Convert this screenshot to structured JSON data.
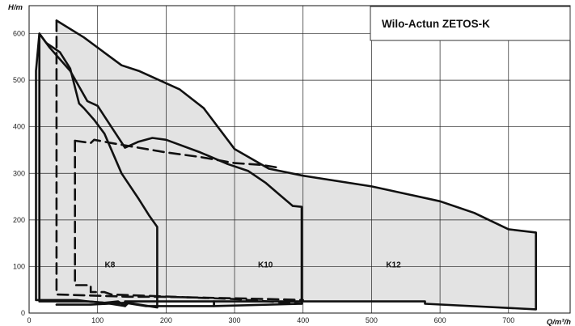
{
  "chart_data": {
    "type": "area",
    "title": "Wilo-Actun ZETOS-K",
    "xlabel": "Q/m³/h",
    "ylabel": "H/m",
    "xlim": [
      0,
      790
    ],
    "ylim": [
      0,
      660
    ],
    "x_ticks": [
      0,
      100,
      200,
      300,
      400,
      500,
      600,
      700
    ],
    "y_ticks": [
      0,
      100,
      200,
      300,
      400,
      500,
      600
    ],
    "x_tick_labels": [
      "0",
      "100",
      "200",
      "300",
      "400",
      "500",
      "600",
      "700"
    ],
    "y_tick_labels": [
      "0",
      "100",
      "200",
      "300",
      "400",
      "500",
      "600"
    ],
    "grid": true,
    "colors": {
      "fill": "#e3e3e3",
      "line": "#111111",
      "grid": "#222222"
    },
    "envelopes": [
      {
        "label": "K12",
        "label_at": [
          532,
          105
        ],
        "style": "solid",
        "points": [
          [
            40,
            628
          ],
          [
            80,
            592
          ],
          [
            135,
            532
          ],
          [
            160,
            520
          ],
          [
            220,
            480
          ],
          [
            255,
            440
          ],
          [
            300,
            352
          ],
          [
            350,
            310
          ],
          [
            400,
            295
          ],
          [
            500,
            272
          ],
          [
            600,
            240
          ],
          [
            650,
            215
          ],
          [
            700,
            180
          ],
          [
            740,
            173
          ],
          [
            740,
            8
          ],
          [
            578,
            20
          ],
          [
            578,
            25
          ],
          [
            90,
            20
          ],
          [
            90,
            18
          ],
          [
            40,
            18
          ]
        ]
      },
      {
        "label": "K10",
        "label_at": [
          345,
          105
        ],
        "style": "solid",
        "points": [
          [
            15,
            600
          ],
          [
            30,
            570
          ],
          [
            60,
            520
          ],
          [
            85,
            455
          ],
          [
            100,
            445
          ],
          [
            120,
            400
          ],
          [
            140,
            355
          ],
          [
            160,
            368
          ],
          [
            180,
            376
          ],
          [
            200,
            372
          ],
          [
            250,
            345
          ],
          [
            290,
            320
          ],
          [
            320,
            305
          ],
          [
            345,
            280
          ],
          [
            365,
            255
          ],
          [
            385,
            230
          ],
          [
            398,
            228
          ],
          [
            398,
            20
          ],
          [
            270,
            15
          ],
          [
            270,
            25
          ],
          [
            40,
            25
          ],
          [
            15,
            25
          ]
        ]
      },
      {
        "label": "K8",
        "label_at": [
          118,
          105
        ],
        "style": "solid",
        "points": [
          [
            10,
            520
          ],
          [
            15,
            600
          ],
          [
            25,
            580
          ],
          [
            45,
            560
          ],
          [
            60,
            525
          ],
          [
            73,
            450
          ],
          [
            80,
            440
          ],
          [
            95,
            415
          ],
          [
            110,
            385
          ],
          [
            135,
            300
          ],
          [
            160,
            245
          ],
          [
            175,
            210
          ],
          [
            187,
            185
          ],
          [
            187,
            12
          ],
          [
            145,
            22
          ],
          [
            140,
            15
          ],
          [
            130,
            25
          ],
          [
            110,
            22
          ],
          [
            85,
            25
          ],
          [
            70,
            28
          ],
          [
            30,
            28
          ],
          [
            10,
            28
          ],
          [
            10,
            520
          ]
        ]
      }
    ],
    "curves": [
      {
        "id": "k12-outline",
        "style": "solid",
        "points": [
          [
            40,
            628
          ],
          [
            80,
            592
          ],
          [
            135,
            532
          ],
          [
            160,
            520
          ],
          [
            220,
            480
          ],
          [
            255,
            440
          ],
          [
            300,
            352
          ],
          [
            350,
            310
          ],
          [
            400,
            295
          ],
          [
            500,
            272
          ],
          [
            600,
            240
          ],
          [
            650,
            215
          ],
          [
            700,
            180
          ],
          [
            740,
            173
          ],
          [
            740,
            8
          ],
          [
            578,
            20
          ],
          [
            578,
            25
          ],
          [
            270,
            25
          ],
          [
            270,
            15
          ],
          [
            170,
            15
          ],
          [
            140,
            22
          ],
          [
            90,
            18
          ],
          [
            40,
            18
          ]
        ]
      },
      {
        "id": "k10-outline",
        "style": "solid",
        "points": [
          [
            15,
            600
          ],
          [
            30,
            570
          ],
          [
            60,
            520
          ],
          [
            85,
            455
          ],
          [
            100,
            445
          ],
          [
            120,
            400
          ],
          [
            140,
            355
          ],
          [
            160,
            368
          ],
          [
            180,
            376
          ],
          [
            200,
            372
          ],
          [
            250,
            345
          ],
          [
            290,
            320
          ],
          [
            320,
            305
          ],
          [
            345,
            280
          ],
          [
            365,
            255
          ],
          [
            385,
            230
          ],
          [
            398,
            228
          ],
          [
            398,
            20
          ],
          [
            270,
            15
          ],
          [
            270,
            25
          ],
          [
            140,
            25
          ],
          [
            140,
            15
          ],
          [
            110,
            22
          ],
          [
            85,
            25
          ],
          [
            15,
            25
          ],
          [
            15,
            600
          ]
        ]
      },
      {
        "id": "k8-outline",
        "style": "solid",
        "points": [
          [
            10,
            520
          ],
          [
            15,
            600
          ],
          [
            25,
            580
          ],
          [
            45,
            560
          ],
          [
            60,
            525
          ],
          [
            73,
            450
          ],
          [
            80,
            440
          ],
          [
            95,
            415
          ],
          [
            110,
            385
          ],
          [
            135,
            300
          ],
          [
            160,
            245
          ],
          [
            175,
            210
          ],
          [
            187,
            185
          ],
          [
            187,
            12
          ],
          [
            145,
            22
          ],
          [
            140,
            15
          ],
          [
            130,
            25
          ],
          [
            110,
            22
          ],
          [
            85,
            25
          ],
          [
            70,
            28
          ],
          [
            10,
            28
          ],
          [
            10,
            520
          ]
        ]
      },
      {
        "id": "k8-dashed",
        "style": "dashed",
        "points": [
          [
            40,
            628
          ],
          [
            40,
            40
          ],
          [
            145,
            35
          ],
          [
            190,
            35
          ],
          [
            350,
            30
          ],
          [
            400,
            28
          ]
        ]
      },
      {
        "id": "k10-dashed",
        "style": "dashed",
        "points": [
          [
            67,
            370
          ],
          [
            67,
            60
          ],
          [
            90,
            60
          ],
          [
            90,
            45
          ],
          [
            110,
            45
          ],
          [
            120,
            40
          ],
          [
            300,
            30
          ],
          [
            398,
            20
          ]
        ]
      },
      {
        "id": "k12-dashed",
        "style": "dashed",
        "points": [
          [
            67,
            370
          ],
          [
            90,
            365
          ],
          [
            95,
            372
          ],
          [
            120,
            365
          ],
          [
            200,
            345
          ],
          [
            250,
            335
          ],
          [
            300,
            322
          ],
          [
            340,
            318
          ],
          [
            365,
            312
          ]
        ]
      }
    ]
  }
}
